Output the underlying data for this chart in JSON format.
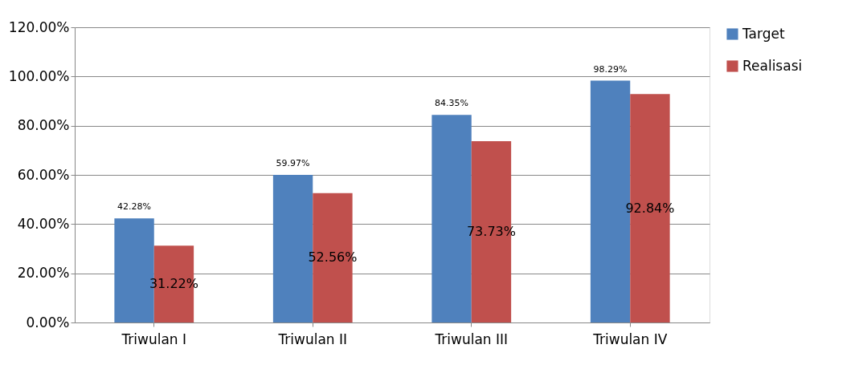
{
  "chart_data": {
    "type": "bar",
    "categories": [
      "Triwulan I",
      "Triwulan II",
      "Triwulan III",
      "Triwulan IV"
    ],
    "series": [
      {
        "name": "Target",
        "color": "#4f81bd",
        "values": [
          42.28,
          59.97,
          84.35,
          98.29
        ],
        "value_labels": [
          "42.28%",
          "59.97%",
          "84.35%",
          "98.29%"
        ]
      },
      {
        "name": "Realisasi",
        "color": "#c0504d",
        "values": [
          31.22,
          52.56,
          73.73,
          92.84
        ],
        "value_labels": [
          "31.22%",
          "52.56%",
          "73.73%",
          "92.84%"
        ]
      }
    ],
    "ylim": [
      0,
      120
    ],
    "yticks": [
      {
        "value": 0,
        "label": "0.00%"
      },
      {
        "value": 20,
        "label": "20.00%"
      },
      {
        "value": 40,
        "label": "40.00%"
      },
      {
        "value": 60,
        "label": "60.00%"
      },
      {
        "value": 80,
        "label": "80.00%"
      },
      {
        "value": 100,
        "label": "100.00%"
      },
      {
        "value": 120,
        "label": "120.00%"
      }
    ],
    "grid": "y",
    "legend": "right"
  }
}
